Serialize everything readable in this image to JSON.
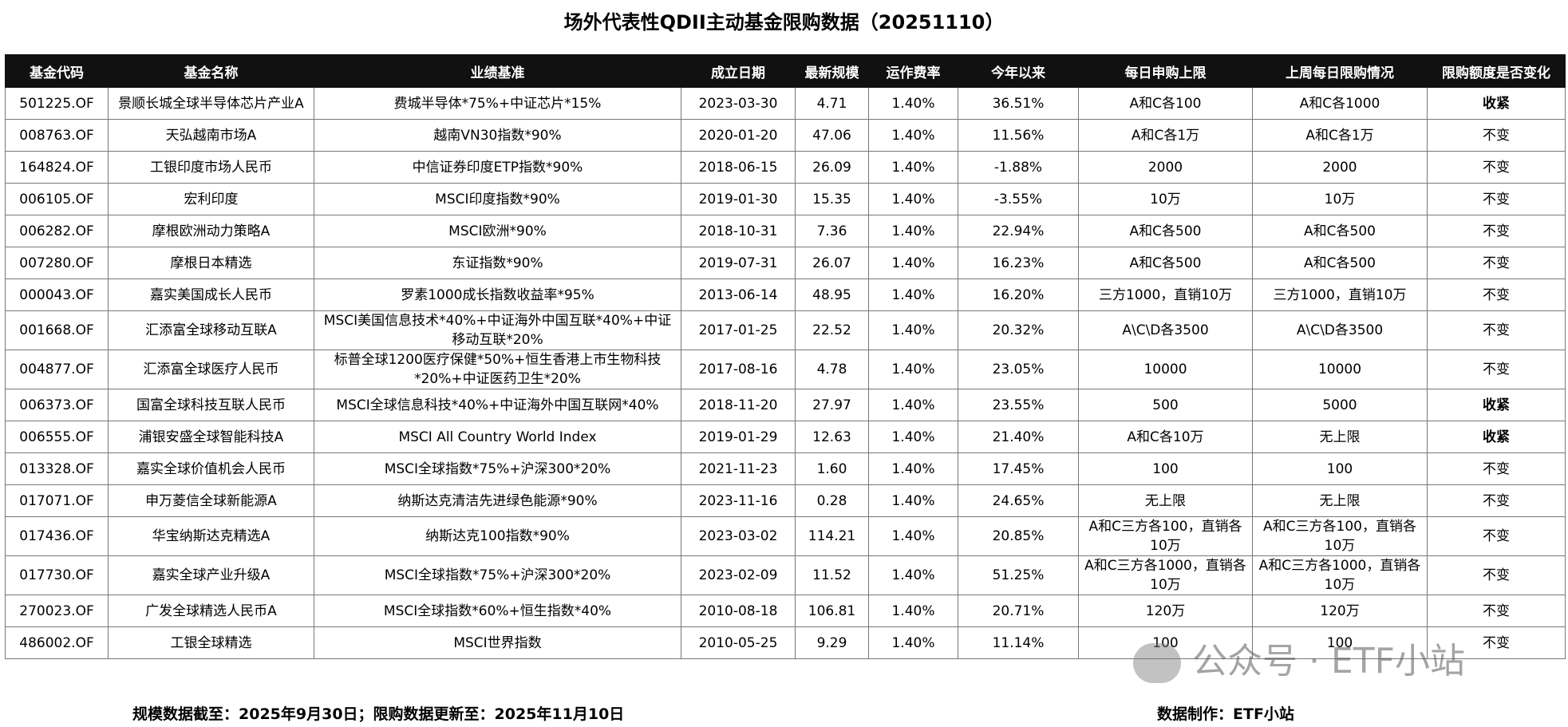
{
  "header": {
    "title": "场外代表性QDII主动基金限购数据（20251110）"
  },
  "table": {
    "columns": [
      "基金代码",
      "基金名称",
      "业绩基准",
      "成立日期",
      "最新规模",
      "运作费率",
      "今年以来",
      "每日申购上限",
      "上周每日限购情况",
      "限购额度是否变化"
    ],
    "rows": [
      {
        "cells": [
          "501225.OF",
          "景顺长城全球半导体芯片产业A",
          "费城半导体*75%+中证芯片*15%",
          "2023-03-30",
          "4.71",
          "1.40%",
          "36.51%",
          "A和C各100",
          "A和C各1000",
          "收紧"
        ],
        "bold_last": true
      },
      {
        "cells": [
          "008763.OF",
          "天弘越南市场A",
          "越南VN30指数*90%",
          "2020-01-20",
          "47.06",
          "1.40%",
          "11.56%",
          "A和C各1万",
          "A和C各1万",
          "不变"
        ]
      },
      {
        "cells": [
          "164824.OF",
          "工银印度市场人民币",
          "中信证券印度ETP指数*90%",
          "2018-06-15",
          "26.09",
          "1.40%",
          "-1.88%",
          "2000",
          "2000",
          "不变"
        ]
      },
      {
        "cells": [
          "006105.OF",
          "宏利印度",
          "MSCI印度指数*90%",
          "2019-01-30",
          "15.35",
          "1.40%",
          "-3.55%",
          "10万",
          "10万",
          "不变"
        ]
      },
      {
        "cells": [
          "006282.OF",
          "摩根欧洲动力策略A",
          "MSCI欧洲*90%",
          "2018-10-31",
          "7.36",
          "1.40%",
          "22.94%",
          "A和C各500",
          "A和C各500",
          "不变"
        ]
      },
      {
        "cells": [
          "007280.OF",
          "摩根日本精选",
          "东证指数*90%",
          "2019-07-31",
          "26.07",
          "1.40%",
          "16.23%",
          "A和C各500",
          "A和C各500",
          "不变"
        ]
      },
      {
        "cells": [
          "000043.OF",
          "嘉实美国成长人民币",
          "罗素1000成长指数收益率*95%",
          "2013-06-14",
          "48.95",
          "1.40%",
          "16.20%",
          "三方1000，直销10万",
          "三方1000，直销10万",
          "不变"
        ]
      },
      {
        "cells": [
          "001668.OF",
          "汇添富全球移动互联A",
          "MSCI美国信息技术*40%+中证海外中国互联*40%+中证移动互联*20%",
          "2017-01-25",
          "22.52",
          "1.40%",
          "20.32%",
          "A\\C\\D各3500",
          "A\\C\\D各3500",
          "不变"
        ]
      },
      {
        "cells": [
          "004877.OF",
          "汇添富全球医疗人民币",
          "标普全球1200医疗保健*50%+恒生香港上市生物科技*20%+中证医药卫生*20%",
          "2017-08-16",
          "4.78",
          "1.40%",
          "23.05%",
          "10000",
          "10000",
          "不变"
        ]
      },
      {
        "cells": [
          "006373.OF",
          "国富全球科技互联人民币",
          "MSCI全球信息科技*40%+中证海外中国互联网*40%",
          "2018-11-20",
          "27.97",
          "1.40%",
          "23.55%",
          "500",
          "5000",
          "收紧"
        ],
        "bold_last": true
      },
      {
        "cells": [
          "006555.OF",
          "浦银安盛全球智能科技A",
          "MSCI All Country World Index",
          "2019-01-29",
          "12.63",
          "1.40%",
          "21.40%",
          "A和C各10万",
          "无上限",
          "收紧"
        ],
        "bold_last": true
      },
      {
        "cells": [
          "013328.OF",
          "嘉实全球价值机会人民币",
          "MSCI全球指数*75%+沪深300*20%",
          "2021-11-23",
          "1.60",
          "1.40%",
          "17.45%",
          "100",
          "100",
          "不变"
        ]
      },
      {
        "cells": [
          "017071.OF",
          "申万菱信全球新能源A",
          "纳斯达克清洁先进绿色能源*90%",
          "2023-11-16",
          "0.28",
          "1.40%",
          "24.65%",
          "无上限",
          "无上限",
          "不变"
        ]
      },
      {
        "cells": [
          "017436.OF",
          "华宝纳斯达克精选A",
          "纳斯达克100指数*90%",
          "2023-03-02",
          "114.21",
          "1.40%",
          "20.85%",
          "A和C三方各100，直销各10万",
          "A和C三方各100，直销各10万",
          "不变"
        ]
      },
      {
        "cells": [
          "017730.OF",
          "嘉实全球产业升级A",
          "MSCI全球指数*75%+沪深300*20%",
          "2023-02-09",
          "11.52",
          "1.40%",
          "51.25%",
          "A和C三方各1000，直销各10万",
          "A和C三方各1000，直销各10万",
          "不变"
        ]
      },
      {
        "cells": [
          "270023.OF",
          "广发全球精选人民币A",
          "MSCI全球指数*60%+恒生指数*40%",
          "2010-08-18",
          "106.81",
          "1.40%",
          "20.71%",
          "120万",
          "120万",
          "不变"
        ]
      },
      {
        "cells": [
          "486002.OF",
          "工银全球精选",
          "MSCI世界指数",
          "2010-05-25",
          "9.29",
          "1.40%",
          "11.14%",
          "100",
          "100",
          "不变"
        ]
      }
    ]
  },
  "footer": {
    "left": "规模数据截至：2025年9月30日；限购数据更新至：2025年11月10日",
    "right": "数据制作：ETF小站"
  },
  "watermark": "公众号 · ETF小站"
}
